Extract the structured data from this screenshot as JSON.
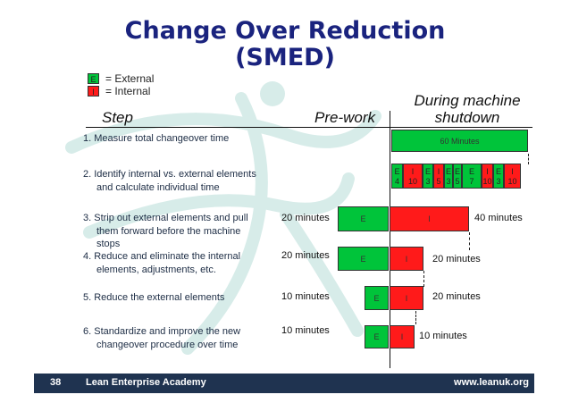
{
  "title": {
    "line1": "Change Over Reduction",
    "line2": "(SMED)"
  },
  "legend": [
    {
      "code": "E",
      "label": "= External",
      "color": "#00c43a"
    },
    {
      "code": "I",
      "label": "= Internal",
      "color": "#ff1a1a"
    }
  ],
  "headers": {
    "step": "Step",
    "prework": "Pre-work",
    "during": "During machine",
    "shutdown": "shutdown"
  },
  "steps": [
    {
      "line1": "1.  Measure total changeover time"
    },
    {
      "line1": "2.  Identify internal vs. external elements",
      "line2": "and calculate individual time"
    },
    {
      "line1": "3.  Strip out external elements and pull",
      "line2": "them forward before the machine",
      "line3": "stops",
      "prework_time": "20 minutes",
      "after": "40 minutes"
    },
    {
      "line1": "4.  Reduce and eliminate the internal",
      "line2": "elements, adjustments, etc.",
      "prework_time": "20 minutes",
      "after": "20 minutes"
    },
    {
      "line1": "5.  Reduce the external elements",
      "prework_time": "10 minutes",
      "after": "20 minutes"
    },
    {
      "line1": "6.  Standardize and improve the new",
      "line2": "changeover procedure over time",
      "prework_time": "10 minutes",
      "after": "10 minutes"
    }
  ],
  "bars": {
    "total": "60 Minutes",
    "e": "E",
    "i": "I"
  },
  "elements": [
    {
      "code": "E",
      "time": "4"
    },
    {
      "code": "I",
      "time": "10"
    },
    {
      "code": "E",
      "time": "3"
    },
    {
      "code": "I",
      "time": "5"
    },
    {
      "code": "E",
      "time": "3"
    },
    {
      "code": "E",
      "time": "5"
    },
    {
      "code": "E",
      "time": "7"
    },
    {
      "code": "I",
      "time": "10"
    },
    {
      "code": "E",
      "time": "3"
    },
    {
      "code": "I",
      "time": "10"
    }
  ],
  "footer": {
    "page": "38",
    "org": "Lean Enterprise Academy",
    "url": "www.leanuk.org"
  }
}
